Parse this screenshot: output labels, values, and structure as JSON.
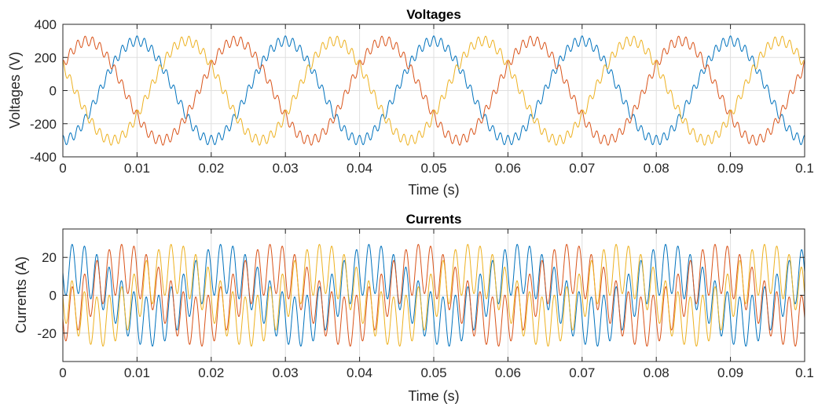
{
  "chart_data": [
    {
      "type": "line",
      "title": "Voltages",
      "xlabel": "Time (s)",
      "ylabel": "Voltages (V)",
      "xlim": [
        0,
        0.1
      ],
      "ylim": [
        -400,
        400
      ],
      "xticks": [
        "0",
        "0.01",
        "0.02",
        "0.03",
        "0.04",
        "0.05",
        "0.06",
        "0.07",
        "0.08",
        "0.09",
        "0.1"
      ],
      "yticks": [
        "400",
        "200",
        "0",
        "-200",
        "-400"
      ],
      "grid": true,
      "series_model": {
        "fundamental_hz": 50,
        "fundamental_amplitude": 300,
        "ripple_hz": 1000,
        "ripple_amplitude": 30,
        "sample_step": 2e-05
      },
      "series": [
        {
          "color": "#0072BD",
          "phase_deg": -90
        },
        {
          "color": "#D95319",
          "phase_deg": 30
        },
        {
          "color": "#EDB120",
          "phase_deg": 150
        }
      ]
    },
    {
      "type": "line",
      "title": "Currents",
      "xlabel": "Time (s)",
      "ylabel": "Currents (A)",
      "xlim": [
        0,
        0.1
      ],
      "ylim": [
        -35,
        35
      ],
      "xticks": [
        "0",
        "0.01",
        "0.02",
        "0.03",
        "0.04",
        "0.05",
        "0.06",
        "0.07",
        "0.08",
        "0.09",
        "0.1"
      ],
      "yticks": [
        "20",
        "0",
        "-20"
      ],
      "yticks_values": [
        20,
        0,
        -20
      ],
      "grid": true,
      "series_model": {
        "fundamental_hz": 50,
        "fundamental_amplitude": 14,
        "ripple_hz": 600,
        "ripple_amplitude": 13,
        "sample_step": 2e-05
      },
      "series": [
        {
          "color": "#0072BD",
          "phase_deg": 60
        },
        {
          "color": "#D95319",
          "phase_deg": -60
        },
        {
          "color": "#EDB120",
          "phase_deg": 180
        }
      ]
    }
  ]
}
